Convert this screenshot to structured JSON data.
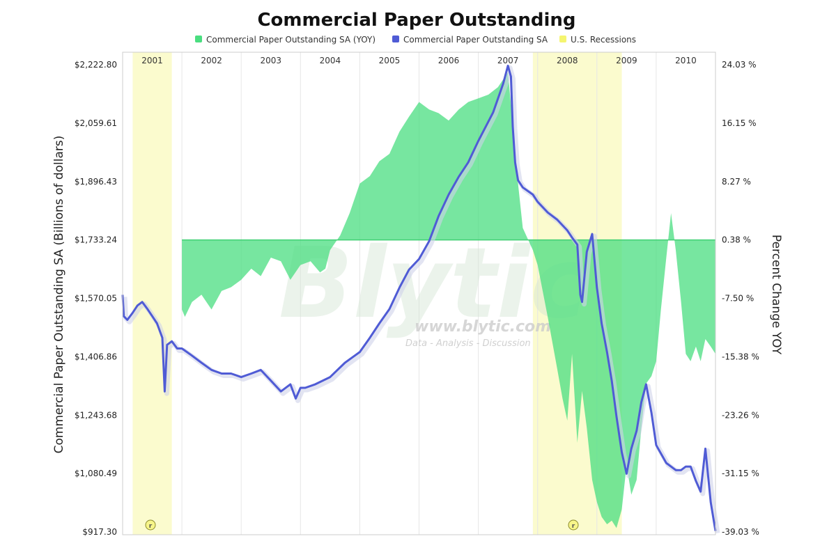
{
  "chart_data": {
    "type": "line",
    "title": "Commercial Paper Outstanding",
    "legend": {
      "placement": "top",
      "entries": [
        {
          "label": "Commercial Paper Outstanding SA (YOY)",
          "color": "#4ade80"
        },
        {
          "label": "Commercial Paper Outstanding SA",
          "color": "#4f5bd5"
        },
        {
          "label": "U.S. Recessions",
          "color": "#f5f570"
        }
      ]
    },
    "ylabel_left": "Commercial Paper Outstanding SA (Billions of dollars)",
    "ylabel_right": "Percent Change YOY",
    "ylim_left": [
      917.3,
      2222.8
    ],
    "ylim_right": [
      -39.03,
      24.03
    ],
    "xlim": [
      2001.0,
      2011.0
    ],
    "yticks_left": [
      "$2,222.80",
      "$2,059.61",
      "$1,896.43",
      "$1,733.24",
      "$1,570.05",
      "$1,406.86",
      "$1,243.68",
      "$1,080.49",
      "$917.30"
    ],
    "yticks_right": [
      "24.03 %",
      "16.15 %",
      "8.27 %",
      "0.38 %",
      "-7.50 %",
      "-15.38 %",
      "-23.26 %",
      "-31.15 %",
      "-39.03 %"
    ],
    "year_labels": [
      "2001",
      "2002",
      "2003",
      "2004",
      "2005",
      "2006",
      "2007",
      "2008",
      "2009",
      "2010"
    ],
    "recessions": [
      {
        "start": 2001.17,
        "end": 2001.83
      },
      {
        "start": 2007.92,
        "end": 2009.42
      }
    ],
    "grid": true,
    "series": [
      {
        "name": "Commercial Paper Outstanding SA",
        "axis": "left",
        "color": "#4f5bd5",
        "x": [
          2001.0,
          2001.02,
          2001.08,
          2001.17,
          2001.25,
          2001.33,
          2001.42,
          2001.5,
          2001.58,
          2001.67,
          2001.71,
          2001.75,
          2001.83,
          2001.92,
          2002.0,
          2002.17,
          2002.33,
          2002.5,
          2002.67,
          2002.83,
          2003.0,
          2003.17,
          2003.33,
          2003.5,
          2003.67,
          2003.83,
          2003.92,
          2004.0,
          2004.08,
          2004.25,
          2004.5,
          2004.75,
          2005.0,
          2005.17,
          2005.33,
          2005.5,
          2005.67,
          2005.83,
          2006.0,
          2006.17,
          2006.33,
          2006.5,
          2006.67,
          2006.83,
          2007.0,
          2007.25,
          2007.42,
          2007.5,
          2007.55,
          2007.58,
          2007.62,
          2007.67,
          2007.75,
          2007.92,
          2008.0,
          2008.17,
          2008.33,
          2008.5,
          2008.58,
          2008.67,
          2008.72,
          2008.75,
          2008.83,
          2008.92,
          2009.0,
          2009.08,
          2009.17,
          2009.25,
          2009.33,
          2009.42,
          2009.5,
          2009.58,
          2009.67,
          2009.75,
          2009.83,
          2009.92,
          2010.0,
          2010.17,
          2010.33,
          2010.42,
          2010.5,
          2010.58,
          2010.67,
          2010.75,
          2010.83,
          2010.92,
          2011.0
        ],
        "values": [
          1580,
          1520,
          1510,
          1530,
          1550,
          1560,
          1540,
          1520,
          1500,
          1460,
          1310,
          1440,
          1450,
          1430,
          1430,
          1410,
          1390,
          1370,
          1360,
          1360,
          1350,
          1360,
          1370,
          1340,
          1310,
          1330,
          1290,
          1320,
          1320,
          1330,
          1350,
          1390,
          1420,
          1460,
          1500,
          1540,
          1600,
          1650,
          1680,
          1730,
          1800,
          1860,
          1910,
          1950,
          2010,
          2090,
          2170,
          2220,
          2190,
          2050,
          1950,
          1900,
          1880,
          1860,
          1840,
          1810,
          1790,
          1760,
          1740,
          1720,
          1580,
          1560,
          1700,
          1750,
          1600,
          1500,
          1420,
          1340,
          1240,
          1140,
          1080,
          1150,
          1200,
          1280,
          1330,
          1250,
          1160,
          1110,
          1090,
          1090,
          1100,
          1100,
          1060,
          1030,
          1150,
          1000,
          920
        ]
      },
      {
        "name": "Commercial Paper Outstanding SA (YOY)",
        "axis": "right",
        "color": "#4ade80",
        "type": "area",
        "baseline": 0.38,
        "x": [
          2002.0,
          2002.05,
          2002.17,
          2002.33,
          2002.5,
          2002.67,
          2002.83,
          2003.0,
          2003.17,
          2003.33,
          2003.5,
          2003.67,
          2003.83,
          2004.0,
          2004.17,
          2004.33,
          2004.42,
          2004.5,
          2004.67,
          2004.83,
          2005.0,
          2005.17,
          2005.33,
          2005.5,
          2005.67,
          2005.83,
          2006.0,
          2006.17,
          2006.33,
          2006.5,
          2006.67,
          2006.83,
          2007.0,
          2007.17,
          2007.33,
          2007.5,
          2007.58,
          2007.67,
          2007.75,
          2007.92,
          2008.0,
          2008.17,
          2008.33,
          2008.42,
          2008.5,
          2008.58,
          2008.67,
          2008.75,
          2008.83,
          2008.92,
          2009.0,
          2009.08,
          2009.17,
          2009.25,
          2009.33,
          2009.42,
          2009.5,
          2009.58,
          2009.67,
          2009.75,
          2009.83,
          2009.92,
          2010.0,
          2010.08,
          2010.17,
          2010.25,
          2010.33,
          2010.42,
          2010.5,
          2010.58,
          2010.67,
          2010.75,
          2010.83,
          2010.92,
          2011.0
        ],
        "values": [
          -9.0,
          -10.0,
          -8.0,
          -7.0,
          -9.0,
          -6.5,
          -6.0,
          -5.0,
          -3.5,
          -4.5,
          -2.0,
          -2.5,
          -5.0,
          -3.0,
          -2.5,
          -4.0,
          -3.5,
          -1.0,
          1.0,
          4.0,
          8.0,
          9.0,
          11.0,
          12.0,
          15.0,
          17.0,
          19.0,
          18.0,
          17.5,
          16.5,
          18.0,
          19.0,
          19.5,
          20.0,
          21.0,
          23.0,
          16.0,
          8.0,
          2.0,
          -1.0,
          -3.0,
          -10.0,
          -17.0,
          -21.0,
          -24.0,
          -15.0,
          -27.0,
          -20.0,
          -25.0,
          -32.0,
          -35.0,
          -37.0,
          -38.0,
          -37.5,
          -38.5,
          -36.0,
          -30.0,
          -34.0,
          -32.0,
          -25.0,
          -19.0,
          -18.0,
          -16.0,
          -9.0,
          -2.0,
          4.0,
          -1.0,
          -8.0,
          -15.0,
          -16.0,
          -14.0,
          -16.0,
          -13.0,
          -14.0,
          -15.0
        ]
      }
    ]
  }
}
